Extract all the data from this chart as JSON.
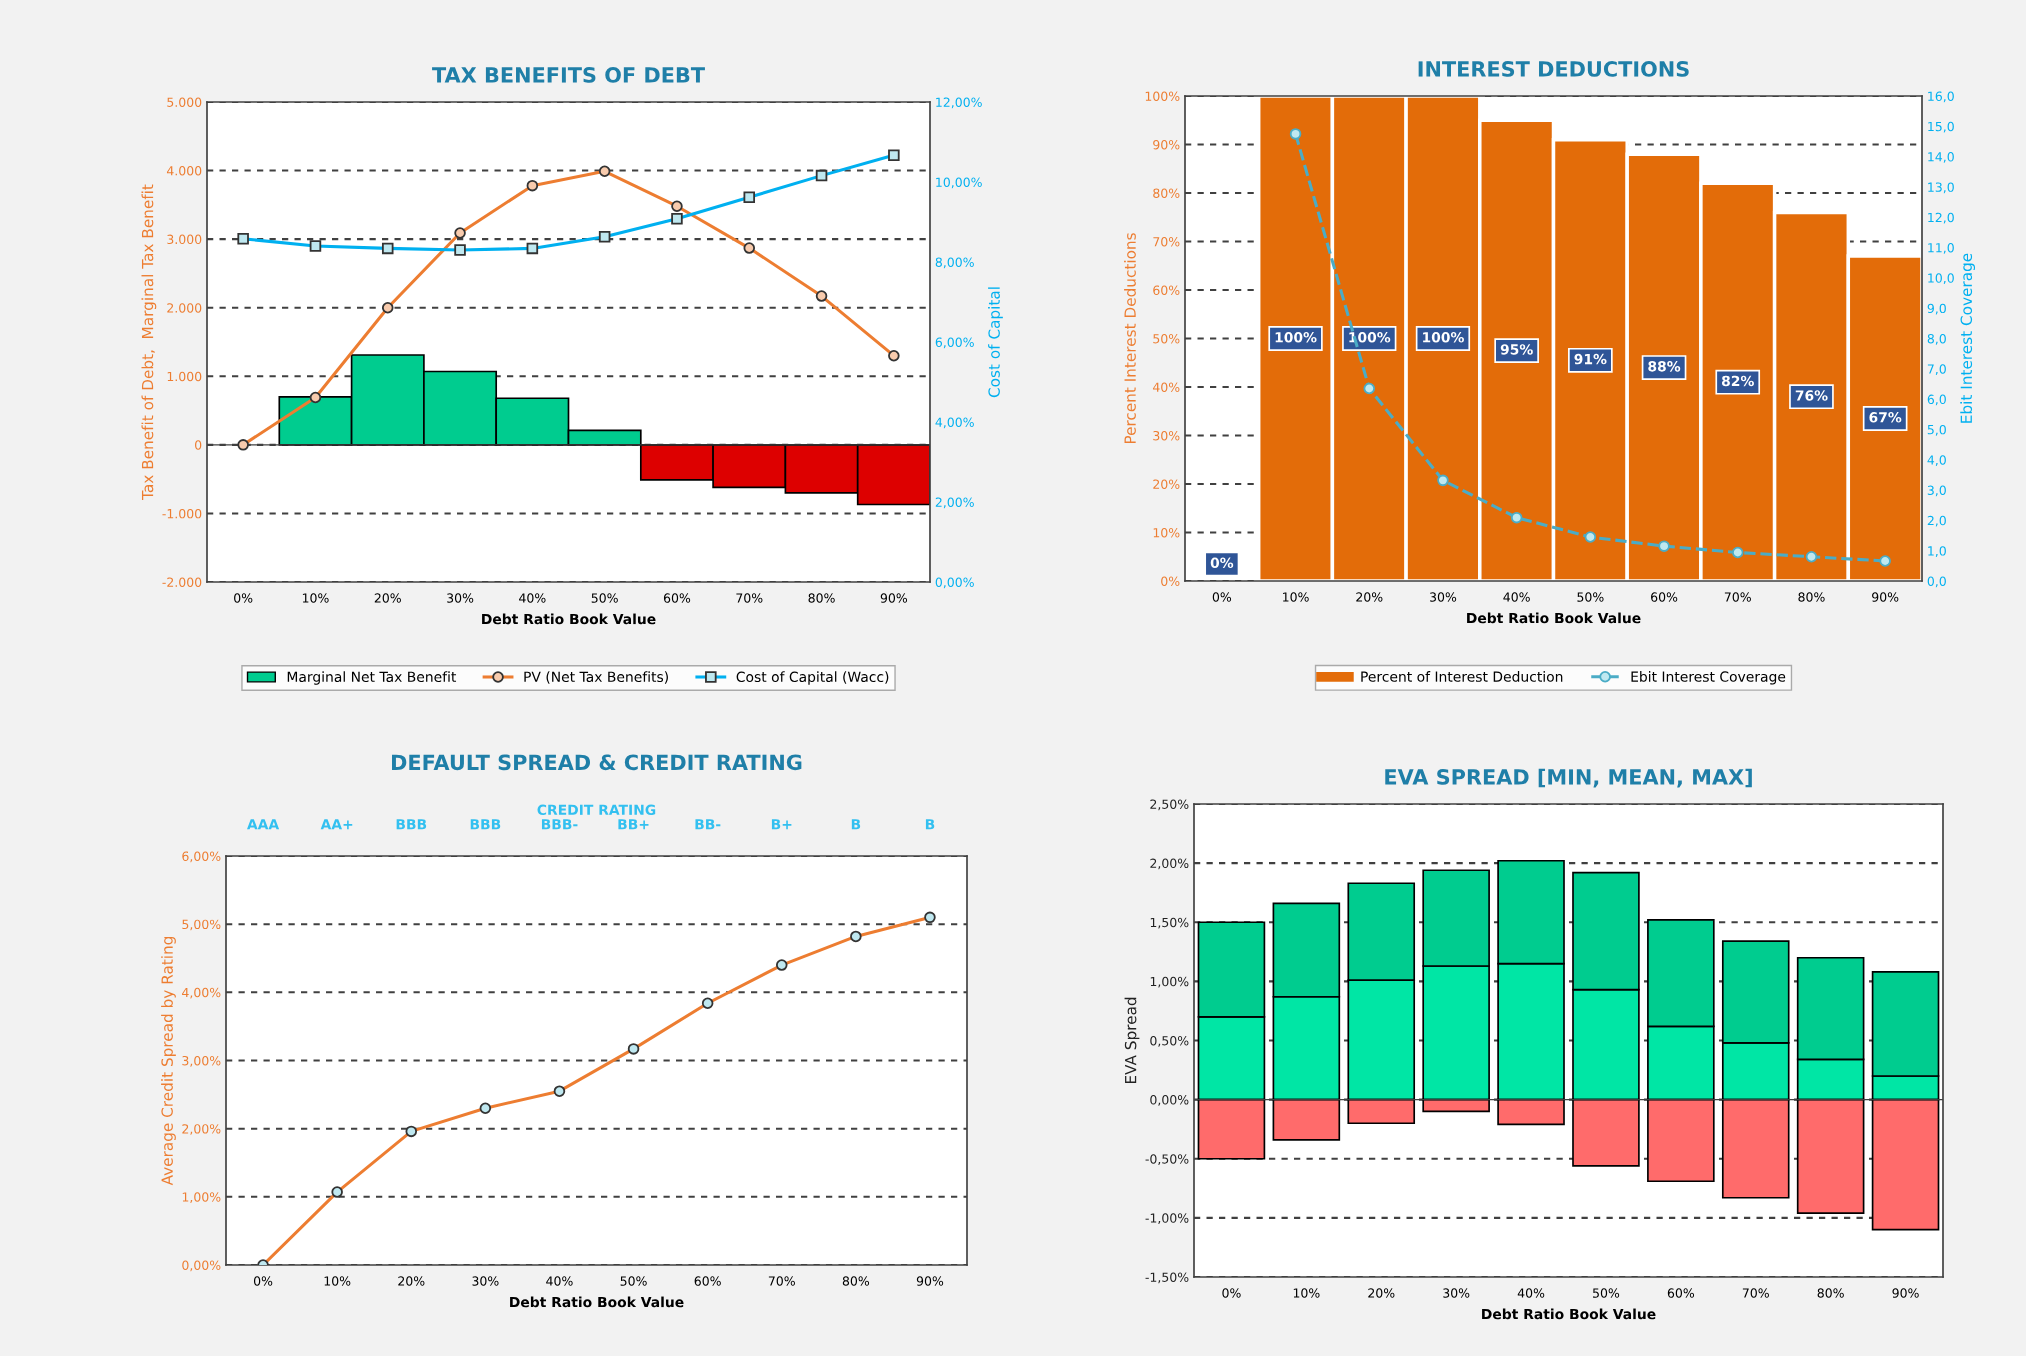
{
  "chart_data": [
    {
      "type": "bar",
      "title": "TAX BENEFITS OF DEBT",
      "xlabel": "Debt Ratio Book Value",
      "ylabel": "Tax Benefit of Debt,  Marginal Tax Benefit",
      "y2label": "Cost of Capital",
      "categories": [
        "0%",
        "10%",
        "20%",
        "30%",
        "40%",
        "50%",
        "60%",
        "70%",
        "80%",
        "90%"
      ],
      "series": [
        {
          "name": "Marginal Net Tax Benefit",
          "values": [
            0,
            700,
            1310,
            1070,
            680,
            210,
            -510,
            -620,
            -700,
            -870
          ],
          "colors": [
            "#00cc8f",
            "#00cc8f",
            "#00cc8f",
            "#00cc8f",
            "#00cc8f",
            "#00cc8f",
            "#dd0000",
            "#dd0000",
            "#dd0000",
            "#dd0000"
          ]
        },
        {
          "name": "PV (Net Tax Benefits)",
          "type": "line",
          "color": "#ed7d31",
          "marker": "circle",
          "values": [
            0,
            690,
            2000,
            3090,
            3780,
            3990,
            3480,
            2870,
            2170,
            1300
          ]
        },
        {
          "name": "Cost of Capital (Wacc)",
          "type": "line",
          "color": "#00b0f0",
          "marker": "square",
          "axis": "y2",
          "values": [
            8.58,
            8.4,
            8.34,
            8.3,
            8.34,
            8.63,
            9.08,
            9.62,
            10.16,
            10.67
          ]
        }
      ],
      "ylim": [
        -2000,
        5000
      ],
      "yticks": [
        {
          "value": -2000,
          "label": "-2.000"
        },
        {
          "value": -1000,
          "label": "-1.000"
        },
        0,
        {
          "value": 1000,
          "label": "1.000"
        },
        {
          "value": 2000,
          "label": "2.000"
        },
        {
          "value": 3000,
          "label": "3.000"
        },
        {
          "value": 4000,
          "label": "4.000"
        },
        {
          "value": 5000,
          "label": "5.000"
        }
      ],
      "y2lim": [
        0,
        12
      ],
      "y2ticks": [
        {
          "value": 0,
          "label": "0,00%"
        },
        {
          "value": 2,
          "label": "2,00%"
        },
        {
          "value": 4,
          "label": "4,00%"
        },
        {
          "value": 6,
          "label": "6,00%"
        },
        {
          "value": 8,
          "label": "8,00%"
        },
        {
          "value": 10,
          "label": "10,00%"
        },
        {
          "value": 12,
          "label": "12,00%"
        }
      ],
      "grid": "y",
      "legend": "bottom"
    },
    {
      "type": "bar",
      "title": "INTEREST DEDUCTIONS",
      "xlabel": "Debt Ratio Book Value",
      "ylabel": "Percent Interest Deductions",
      "y2label": "Ebit Interest Coverage",
      "categories": [
        "0%",
        "10%",
        "20%",
        "30%",
        "40%",
        "50%",
        "60%",
        "70%",
        "80%",
        "90%"
      ],
      "series": [
        {
          "name": "Percent of Interest Deduction",
          "color": "#e36c09",
          "values": [
            0,
            100,
            100,
            100,
            95,
            91,
            88,
            82,
            76,
            67
          ],
          "value_labels": [
            "0%",
            "100%",
            "100%",
            "100%",
            "95%",
            "91%",
            "88%",
            "82%",
            "76%",
            "67%"
          ]
        },
        {
          "name": "Ebit Interest Coverage",
          "type": "line",
          "color": "#4bacc6",
          "marker": "circle",
          "line_style": "dashed",
          "axis": "y2",
          "values": [
            null,
            14.75,
            6.35,
            3.32,
            2.09,
            1.45,
            1.15,
            0.94,
            0.8,
            0.66
          ]
        }
      ],
      "ylim": [
        0,
        100
      ],
      "yticks": [
        {
          "value": 0,
          "label": "0%"
        },
        {
          "value": 10,
          "label": "10%"
        },
        {
          "value": 20,
          "label": "20%"
        },
        {
          "value": 30,
          "label": "30%"
        },
        {
          "value": 40,
          "label": "40%"
        },
        {
          "value": 50,
          "label": "50%"
        },
        {
          "value": 60,
          "label": "60%"
        },
        {
          "value": 70,
          "label": "70%"
        },
        {
          "value": 80,
          "label": "80%"
        },
        {
          "value": 90,
          "label": "90%"
        },
        {
          "value": 100,
          "label": "100%"
        }
      ],
      "y2lim": [
        0,
        16
      ],
      "y2ticks": [
        {
          "value": 0,
          "label": "0,0"
        },
        {
          "value": 1,
          "label": "1,0"
        },
        {
          "value": 2,
          "label": "2,0"
        },
        {
          "value": 3,
          "label": "3,0"
        },
        {
          "value": 4,
          "label": "4,0"
        },
        {
          "value": 5,
          "label": "5,0"
        },
        {
          "value": 6,
          "label": "6,0"
        },
        {
          "value": 7,
          "label": "7,0"
        },
        {
          "value": 8,
          "label": "8,0"
        },
        {
          "value": 9,
          "label": "9,0"
        },
        {
          "value": 10,
          "label": "10,0"
        },
        {
          "value": 11,
          "label": "11,0"
        },
        {
          "value": 12,
          "label": "12,0"
        },
        {
          "value": 13,
          "label": "13,0"
        },
        {
          "value": 14,
          "label": "14,0"
        },
        {
          "value": 15,
          "label": "15,0"
        },
        {
          "value": 16,
          "label": "16,0"
        }
      ],
      "grid": "y",
      "legend": "bottom"
    },
    {
      "type": "line",
      "title": "DEFAULT SPREAD & CREDIT RATING",
      "xlabel": "Debt Ratio Book Value",
      "ylabel": "Average Credit Spread by Rating",
      "x2label": "CREDIT RATING",
      "categories": [
        "0%",
        "10%",
        "20%",
        "30%",
        "40%",
        "50%",
        "60%",
        "70%",
        "80%",
        "90%"
      ],
      "series": [
        {
          "color": "#ed7d31",
          "marker": "circle",
          "values": [
            0,
            1.07,
            1.96,
            2.3,
            2.55,
            3.17,
            3.84,
            4.4,
            4.82,
            5.1
          ]
        }
      ],
      "ylim": [
        0,
        6
      ],
      "yticks": [
        {
          "value": 0,
          "label": "0,00%"
        },
        {
          "value": 1,
          "label": "1,00%"
        },
        {
          "value": 2,
          "label": "2,00%"
        },
        {
          "value": 3,
          "label": "3,00%"
        },
        {
          "value": 4,
          "label": "4,00%"
        },
        {
          "value": 5,
          "label": "5,00%"
        },
        {
          "value": 6,
          "label": "6,00%"
        }
      ],
      "annotations": [
        "AAA",
        "AA+",
        "BBB",
        "BBB",
        "BBB-",
        "BB+",
        "BB-",
        "B+",
        "B",
        "B"
      ],
      "grid": "y"
    },
    {
      "type": "bar",
      "stacked": true,
      "title": "EVA SPREAD [MIN, MEAN, MAX]",
      "xlabel": "Debt Ratio Book Value",
      "ylabel": "EVA Spread",
      "categories": [
        "0%",
        "10%",
        "20%",
        "30%",
        "40%",
        "50%",
        "60%",
        "70%",
        "80%",
        "90%"
      ],
      "series": [
        {
          "color": "#00e6a5",
          "values": [
            0.7,
            0.87,
            1.01,
            1.13,
            1.15,
            0.93,
            0.62,
            0.48,
            0.34,
            0.2
          ]
        },
        {
          "color": "#00cc8f",
          "values": [
            0.8,
            0.79,
            0.82,
            0.81,
            0.87,
            0.99,
            0.9,
            0.86,
            0.86,
            0.88
          ]
        },
        {
          "color": "#ff6b6b",
          "values": [
            -0.5,
            -0.34,
            -0.2,
            -0.1,
            -0.21,
            -0.56,
            -0.69,
            -0.83,
            -0.96,
            -1.1
          ]
        }
      ],
      "ylim": [
        -1.5,
        2.5
      ],
      "yticks": [
        {
          "value": -1.5,
          "label": "-1,50%"
        },
        {
          "value": -1,
          "label": "-1,00%"
        },
        {
          "value": -0.5,
          "label": "-0,50%"
        },
        {
          "value": 0,
          "label": "0,00%"
        },
        {
          "value": 0.5,
          "label": "0,50%"
        },
        {
          "value": 1,
          "label": "1,00%"
        },
        {
          "value": 1.5,
          "label": "1,50%"
        },
        {
          "value": 2,
          "label": "2,00%"
        },
        {
          "value": 2.5,
          "label": "2,50%"
        }
      ],
      "grid": "y"
    }
  ]
}
